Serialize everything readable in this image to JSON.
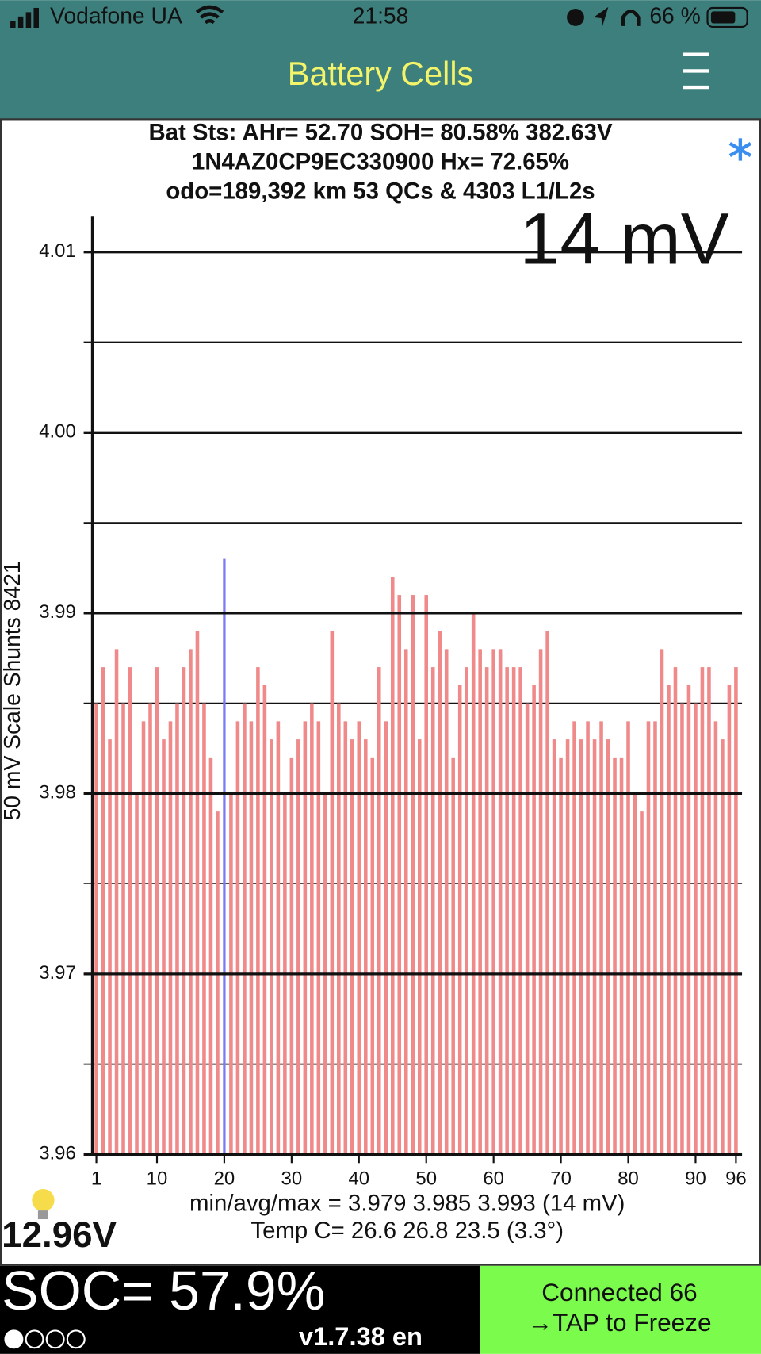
{
  "status_bar": {
    "carrier": "Vodafone UA",
    "time": "21:58",
    "battery": "66 %"
  },
  "header": {
    "title": "Battery Cells"
  },
  "info": [
    "Bat Sts:  AHr= 52.70  SOH= 80.58%   382.63V",
    "1N4AZ0CP9EC330900   Hx= 72.65%",
    "odo=189,392 km 53 QCs & 4303 L1/L2s"
  ],
  "chart_data": {
    "type": "bar",
    "annotation": "14 mV",
    "ylabel": "50 mV Scale   Shunts 8421",
    "x": [
      1,
      2,
      3,
      4,
      5,
      6,
      7,
      8,
      9,
      10,
      11,
      12,
      13,
      14,
      15,
      16,
      17,
      18,
      19,
      20,
      21,
      22,
      23,
      24,
      25,
      26,
      27,
      28,
      29,
      30,
      31,
      32,
      33,
      34,
      35,
      36,
      37,
      38,
      39,
      40,
      41,
      42,
      43,
      44,
      45,
      46,
      47,
      48,
      49,
      50,
      51,
      52,
      53,
      54,
      55,
      56,
      57,
      58,
      59,
      60,
      61,
      62,
      63,
      64,
      65,
      66,
      67,
      68,
      69,
      70,
      71,
      72,
      73,
      74,
      75,
      76,
      77,
      78,
      79,
      80,
      81,
      82,
      83,
      84,
      85,
      86,
      87,
      88,
      89,
      90,
      91,
      92,
      93,
      94,
      95,
      96
    ],
    "values": [
      3.985,
      3.987,
      3.983,
      3.988,
      3.985,
      3.987,
      3.98,
      3.984,
      3.985,
      3.987,
      3.983,
      3.984,
      3.985,
      3.987,
      3.988,
      3.989,
      3.985,
      3.982,
      3.979,
      3.993,
      3.98,
      3.984,
      3.985,
      3.984,
      3.987,
      3.986,
      3.983,
      3.984,
      3.98,
      3.982,
      3.983,
      3.984,
      3.985,
      3.984,
      3.98,
      3.989,
      3.985,
      3.984,
      3.983,
      3.984,
      3.983,
      3.982,
      3.987,
      3.984,
      3.992,
      3.991,
      3.988,
      3.991,
      3.983,
      3.991,
      3.987,
      3.989,
      3.988,
      3.982,
      3.986,
      3.987,
      3.99,
      3.988,
      3.987,
      3.988,
      3.988,
      3.987,
      3.987,
      3.987,
      3.985,
      3.986,
      3.988,
      3.989,
      3.983,
      3.982,
      3.983,
      3.984,
      3.983,
      3.984,
      3.983,
      3.984,
      3.983,
      3.982,
      3.982,
      3.984,
      3.98,
      3.979,
      3.984,
      3.984,
      3.988,
      3.986,
      3.987,
      3.985,
      3.986,
      3.985,
      3.987,
      3.987,
      3.984,
      3.983,
      3.986,
      3.987
    ],
    "color": "#f08a8a",
    "highlight_x": 20,
    "highlight_color": "#7a7af2",
    "xlim": [
      0.4,
      96.9
    ],
    "xticks": [
      1,
      10,
      20,
      30,
      40,
      50,
      60,
      70,
      80,
      90,
      96
    ],
    "ylim": [
      3.96,
      4.012
    ],
    "yticks": [
      3.96,
      3.97,
      3.98,
      3.99,
      {
        "value": 4,
        "label": "4.00"
      },
      4.01
    ],
    "minor_yticks": [
      3.965,
      3.975,
      3.985,
      3.995,
      4.005
    ],
    "grid": true,
    "notes": [
      "min/avg/max = 3.979 3.985 3.993  (14 mV)",
      "Temp C= 26.6  26.8  23.5  (3.3°)"
    ]
  },
  "footer": {
    "aux_voltage": "12.96V",
    "soc": "SOC= 57.9%",
    "version": "v1.7.38 en",
    "connection": [
      "Connected 66",
      "→TAP to Freeze"
    ]
  }
}
